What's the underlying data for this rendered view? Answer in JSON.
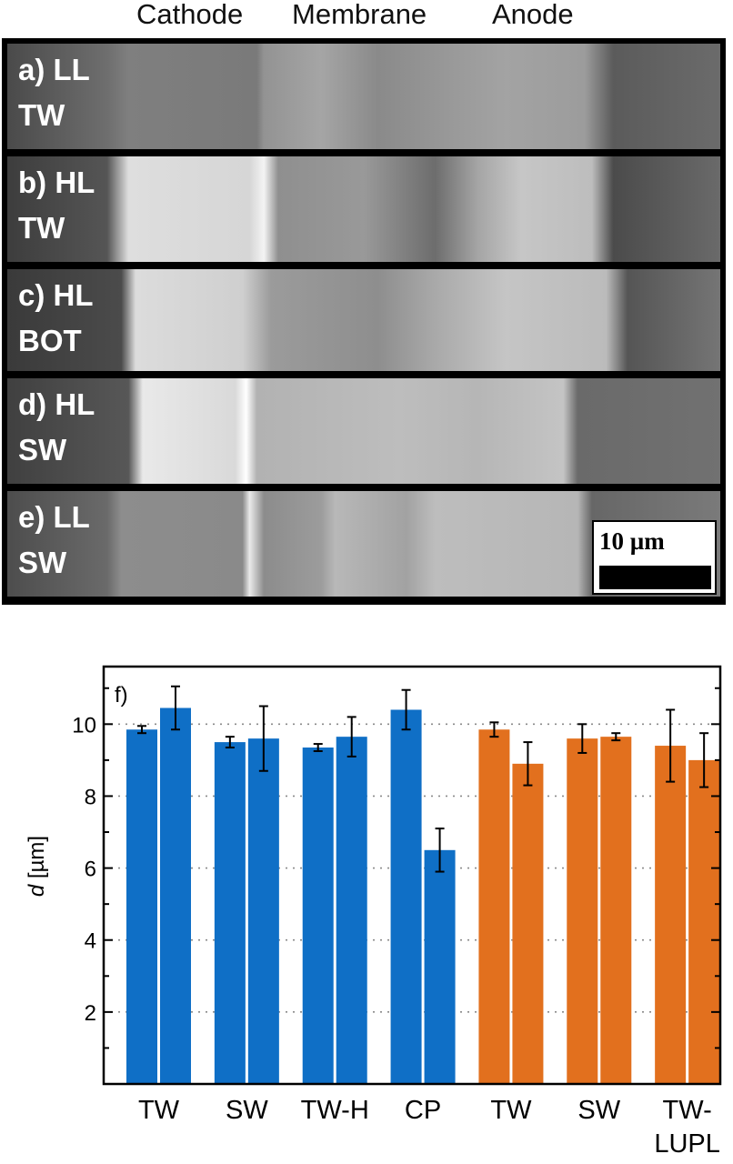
{
  "header": {
    "cathode": "Cathode",
    "membrane": "Membrane",
    "anode": "Anode"
  },
  "sem_panels": [
    {
      "line1": "a) LL",
      "line2": "TW"
    },
    {
      "line1": "b) HL",
      "line2": "TW"
    },
    {
      "line1": "c) HL",
      "line2": "BOT"
    },
    {
      "line1": "d) HL",
      "line2": "SW"
    },
    {
      "line1": "e) LL",
      "line2": "SW"
    }
  ],
  "scale_bar": {
    "label": "10 µm"
  },
  "chart_data": {
    "type": "bar",
    "panel_label": "f)",
    "ylabel_italic": "d",
    "ylabel_unit": " [µm]",
    "ylim": [
      0,
      11.6
    ],
    "yticks": [
      2,
      4,
      6,
      8,
      10
    ],
    "grid": "horizontal dotted",
    "groups": [
      {
        "label": "TW",
        "color": "#0f6fc6",
        "values": [
          9.85,
          10.45
        ],
        "errors": [
          0.1,
          0.6
        ]
      },
      {
        "label": "SW",
        "color": "#0f6fc6",
        "values": [
          9.5,
          9.6
        ],
        "errors": [
          0.15,
          0.9
        ]
      },
      {
        "label": "TW-H",
        "color": "#0f6fc6",
        "values": [
          9.35,
          9.65
        ],
        "errors": [
          0.1,
          0.55
        ]
      },
      {
        "label": "CP",
        "color": "#0f6fc6",
        "values": [
          10.4,
          6.5
        ],
        "errors": [
          0.55,
          0.6
        ]
      },
      {
        "label": "TW",
        "color": "#e2701e",
        "values": [
          9.85,
          8.9
        ],
        "errors": [
          0.2,
          0.6
        ]
      },
      {
        "label": "SW",
        "color": "#e2701e",
        "values": [
          9.6,
          9.65
        ],
        "errors": [
          0.4,
          0.1
        ]
      },
      {
        "label": "TW-\nLUPL",
        "color": "#e2701e",
        "values": [
          9.4,
          9.0
        ],
        "errors": [
          1.0,
          0.75
        ]
      }
    ]
  }
}
